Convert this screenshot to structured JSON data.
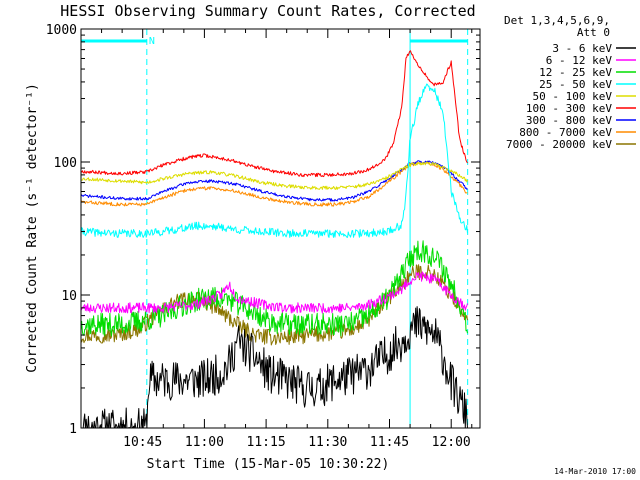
{
  "chart_data": {
    "type": "line",
    "title": "HESSI Observing Summary Count Rates, Corrected",
    "xlabel": "Start Time (15-Mar-05 10:30:22)",
    "ylabel": "Corrected Count Rate (s⁻¹ detector⁻¹)",
    "yscale": "log",
    "ylim": [
      1,
      1000
    ],
    "yticks": [
      {
        "value": 1,
        "label": "1"
      },
      {
        "value": 10,
        "label": "10"
      },
      {
        "value": 100,
        "label": "100"
      },
      {
        "value": 1000,
        "label": "1000"
      }
    ],
    "xlim_minutes": [
      0,
      97
    ],
    "xticks": [
      {
        "minute": 15,
        "label": "10:45"
      },
      {
        "minute": 30,
        "label": "11:00"
      },
      {
        "minute": 45,
        "label": "11:15"
      },
      {
        "minute": 60,
        "label": "11:30"
      },
      {
        "minute": 75,
        "label": "11:45"
      },
      {
        "minute": 90,
        "label": "12:00"
      }
    ],
    "legend_header": [
      "Det 1,3,4,5,6,9,",
      "Att 0"
    ],
    "legend_position": "right",
    "markers": {
      "night_bars": [
        [
          0,
          16
        ],
        [
          80,
          94
        ]
      ],
      "night_label": "N",
      "dashed_lines_minutes": [
        16,
        94
      ],
      "solid_line_minute": 80
    },
    "series": [
      {
        "name": "3 - 6 keV",
        "color": "#000000",
        "x": [
          0,
          16,
          16.5,
          30,
          34,
          36,
          38,
          42,
          46,
          50,
          54,
          58,
          62,
          66,
          70,
          74,
          78,
          80,
          82,
          84,
          86,
          88,
          90,
          92,
          94
        ],
        "y": [
          1,
          1,
          2.3,
          2.3,
          2.6,
          3,
          4.5,
          3.5,
          2.5,
          2.3,
          2,
          2,
          2.3,
          2.5,
          2.8,
          3.5,
          4.5,
          5.5,
          6,
          5.5,
          5,
          3.5,
          2.2,
          1.6,
          1.2
        ],
        "noise": 0.35,
        "seed": 11
      },
      {
        "name": "6 - 12 keV",
        "color": "#ff00ff",
        "x": [
          0,
          10,
          20,
          28,
          34,
          36,
          38,
          44,
          50,
          56,
          62,
          66,
          70,
          74,
          78,
          80,
          82,
          84,
          86,
          88,
          90,
          92,
          94
        ],
        "y": [
          8,
          8,
          8,
          8.5,
          10,
          12,
          9.5,
          8.5,
          8,
          8,
          8,
          8,
          8.5,
          9.5,
          11,
          13,
          14,
          13.5,
          13,
          11.5,
          10,
          9,
          8
        ],
        "noise": 0.09,
        "seed": 23
      },
      {
        "name": "12 - 25 keV",
        "color": "#00dd00",
        "x": [
          0,
          10,
          16,
          20,
          25,
          30,
          35,
          40,
          45,
          50,
          55,
          60,
          65,
          70,
          74,
          78,
          80,
          82,
          84,
          86,
          88,
          90,
          92,
          94
        ],
        "y": [
          6,
          6,
          6.5,
          7,
          8.5,
          9.5,
          9.5,
          8,
          6.5,
          6,
          6,
          6,
          6,
          7,
          9,
          14,
          19,
          22,
          21,
          19,
          16,
          12,
          9,
          6
        ],
        "noise": 0.2,
        "seed": 37
      },
      {
        "name": "25 - 50 keV",
        "color": "#00ffff",
        "x": [
          0,
          8,
          16,
          20,
          28,
          32,
          38,
          44,
          50,
          56,
          62,
          66,
          70,
          74,
          76,
          78,
          79,
          80,
          82,
          84,
          86,
          88,
          90,
          92,
          94
        ],
        "y": [
          30,
          29,
          29,
          30,
          33,
          33,
          31,
          30,
          29,
          29,
          29,
          29,
          29,
          30,
          31,
          34,
          55,
          150,
          280,
          370,
          340,
          240,
          60,
          38,
          31
        ],
        "noise": 0.07,
        "seed": 41
      },
      {
        "name": "50 - 100 keV",
        "color": "#dddd00",
        "x": [
          0,
          10,
          16,
          20,
          26,
          32,
          38,
          44,
          50,
          56,
          62,
          66,
          70,
          74,
          78,
          80,
          82,
          84,
          86,
          88,
          90,
          92,
          94
        ],
        "y": [
          75,
          72,
          70,
          75,
          82,
          84,
          78,
          70,
          66,
          64,
          64,
          65,
          68,
          75,
          88,
          95,
          98,
          98,
          96,
          92,
          86,
          79,
          72
        ],
        "noise": 0.03,
        "seed": 53
      },
      {
        "name": "100 - 300 keV",
        "color": "#ff0000",
        "x": [
          0,
          10,
          16,
          20,
          26,
          30,
          36,
          42,
          48,
          54,
          60,
          66,
          70,
          74,
          76,
          78,
          79,
          80,
          82,
          84,
          86,
          88,
          89,
          90,
          91,
          92,
          94
        ],
        "y": [
          85,
          82,
          84,
          95,
          108,
          112,
          104,
          92,
          84,
          80,
          80,
          82,
          88,
          105,
          140,
          260,
          600,
          680,
          540,
          440,
          380,
          390,
          480,
          560,
          300,
          150,
          95
        ],
        "noise": 0.03,
        "seed": 67
      },
      {
        "name": "300 - 800 keV",
        "color": "#0000ff",
        "x": [
          0,
          10,
          16,
          20,
          26,
          32,
          38,
          44,
          50,
          56,
          62,
          66,
          70,
          74,
          78,
          80,
          82,
          84,
          86,
          88,
          90,
          92,
          94
        ],
        "y": [
          56,
          53,
          53,
          60,
          70,
          72,
          68,
          60,
          55,
          52,
          52,
          54,
          60,
          72,
          88,
          98,
          100,
          100,
          98,
          92,
          82,
          72,
          62
        ],
        "noise": 0.025,
        "seed": 71
      },
      {
        "name": "800 - 7000 keV",
        "color": "#ff8c00",
        "x": [
          0,
          10,
          16,
          20,
          26,
          32,
          38,
          44,
          50,
          56,
          62,
          66,
          70,
          74,
          78,
          80,
          82,
          84,
          86,
          88,
          90,
          92,
          94
        ],
        "y": [
          50,
          48,
          48,
          54,
          62,
          64,
          60,
          54,
          50,
          48,
          48,
          50,
          55,
          68,
          85,
          95,
          98,
          98,
          95,
          88,
          78,
          68,
          58
        ],
        "noise": 0.03,
        "seed": 83
      },
      {
        "name": "7000 - 20000 keV",
        "color": "#8b7500",
        "x": [
          0,
          8,
          14,
          18,
          22,
          26,
          30,
          34,
          38,
          42,
          46,
          50,
          56,
          62,
          66,
          70,
          74,
          78,
          80,
          82,
          84,
          86,
          88,
          90,
          92,
          94
        ],
        "y": [
          5,
          5,
          5.5,
          7,
          8.5,
          9.5,
          9,
          7.5,
          6,
          5,
          4.8,
          4.8,
          5,
          5.2,
          5.5,
          6.5,
          9,
          12,
          14,
          15,
          15,
          14,
          12,
          10,
          8,
          6
        ],
        "noise": 0.14,
        "seed": 97
      }
    ]
  },
  "footer": {
    "timestamp": "14-Mar-2010 17:00"
  }
}
